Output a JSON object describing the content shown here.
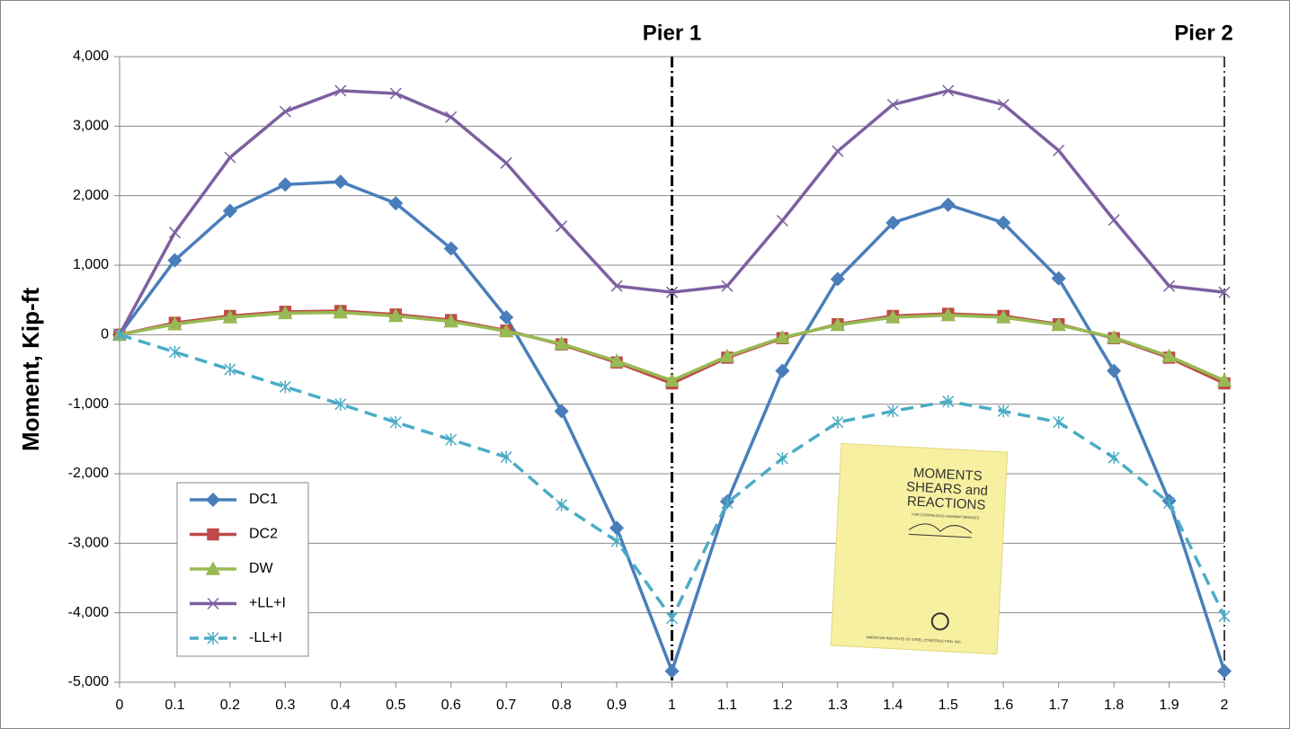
{
  "chart_data": {
    "type": "line",
    "y_label": "Moment, Kip-ft",
    "x": [
      0,
      0.1,
      0.2,
      0.3,
      0.4,
      0.5,
      0.6,
      0.7,
      0.8,
      0.9,
      1,
      1.1,
      1.2,
      1.3,
      1.4,
      1.5,
      1.6,
      1.7,
      1.8,
      1.9,
      2
    ],
    "xlim": [
      0,
      2
    ],
    "ylim": [
      -5000,
      4000
    ],
    "yticks": [
      {
        "value": -5000,
        "label": "-5,000"
      },
      {
        "value": -4000,
        "label": "-4,000"
      },
      {
        "value": -3000,
        "label": "-3,000"
      },
      {
        "value": -2000,
        "label": "-2,000"
      },
      {
        "value": -1000,
        "label": "-1,000"
      },
      0,
      {
        "value": 1000,
        "label": "1,000"
      },
      {
        "value": 2000,
        "label": "2,000"
      },
      {
        "value": 3000,
        "label": "3,000"
      },
      {
        "value": 4000,
        "label": "4,000"
      }
    ],
    "grid": true,
    "legend": "lower left",
    "series": [
      {
        "name": "DC1",
        "color": "#4a7ebb",
        "marker": "diamond",
        "values": [
          0,
          1070,
          1780,
          2160,
          2200,
          1890,
          1240,
          250,
          -1100,
          -2780,
          -4840,
          -2400,
          -520,
          800,
          1610,
          1870,
          1610,
          810,
          -520,
          -2390,
          -4840
        ]
      },
      {
        "name": "DC2",
        "color": "#be4b48",
        "marker": "square",
        "values": [
          0,
          170,
          270,
          330,
          340,
          290,
          210,
          60,
          -140,
          -400,
          -700,
          -330,
          -50,
          150,
          270,
          300,
          270,
          150,
          -50,
          -330,
          -700
        ]
      },
      {
        "name": "DW",
        "color": "#98b954",
        "marker": "triangle",
        "values": [
          0,
          150,
          250,
          310,
          320,
          270,
          190,
          50,
          -130,
          -380,
          -660,
          -310,
          -40,
          140,
          250,
          280,
          250,
          140,
          -40,
          -310,
          -660
        ]
      },
      {
        "name": "+LL+I",
        "color": "#7d60a0",
        "marker": "x",
        "values": [
          0,
          1470,
          2550,
          3210,
          3510,
          3470,
          3130,
          2470,
          1560,
          700,
          610,
          700,
          1640,
          2640,
          3310,
          3510,
          3310,
          2650,
          1650,
          700,
          610
        ]
      },
      {
        "name": "-LL+I",
        "color": "#4bacc6",
        "marker": "star",
        "dashed": true,
        "values": [
          0,
          -250,
          -500,
          -750,
          -1000,
          -1260,
          -1510,
          -1760,
          -2450,
          -2970,
          -4080,
          -2420,
          -1780,
          -1260,
          -1100,
          -960,
          -1100,
          -1260,
          -1770,
          -2420,
          -4050
        ]
      }
    ],
    "piers": [
      {
        "x": 1,
        "label": "Pier 1"
      },
      {
        "x": 2,
        "label": "Pier 2"
      }
    ],
    "inset": {
      "title": [
        "MOMENTS",
        "SHEARS and",
        "REACTIONS"
      ],
      "subtitle": "FOR CONTINUOUS HIGHWAY BRIDGES",
      "publisher": "AMERICAN INSTITUTE OF STEEL CONSTRUCTION, INC."
    }
  }
}
